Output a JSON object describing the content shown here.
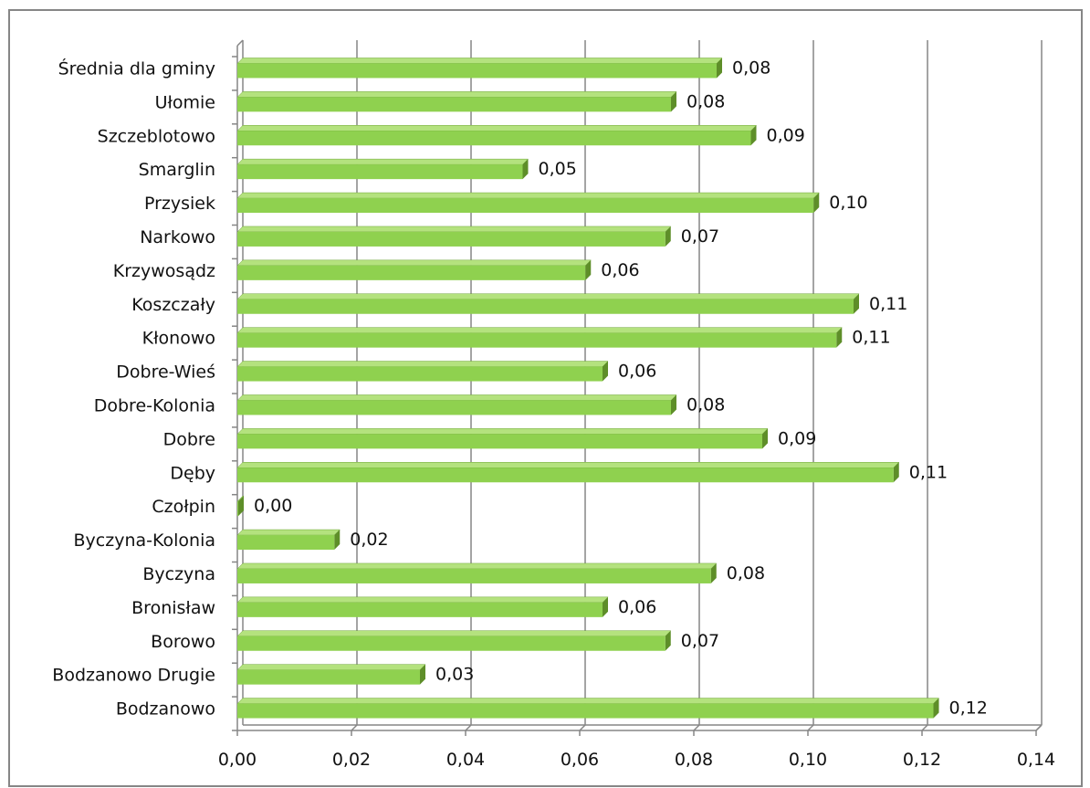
{
  "chart_data": {
    "type": "bar",
    "orientation": "horizontal",
    "style": "3d",
    "categories": [
      "Bodzanowo",
      "Bodzanowo Drugie",
      "Borowo",
      "Bronisław",
      "Byczyna",
      "Byczyna-Kolonia",
      "Czołpin",
      "Dęby",
      "Dobre",
      "Dobre-Kolonia",
      "Dobre-Wieś",
      "Kłonowo",
      "Koszczały",
      "Krzywosądz",
      "Narkowo",
      "Przysiek",
      "Smarglin",
      "Szczeblotowo",
      "Ułomie",
      "Średnia dla gminy"
    ],
    "values": [
      0.122,
      0.032,
      0.075,
      0.064,
      0.083,
      0.017,
      0.0,
      0.115,
      0.092,
      0.076,
      0.064,
      0.105,
      0.108,
      0.061,
      0.075,
      0.101,
      0.05,
      0.09,
      0.076,
      0.084
    ],
    "data_labels": [
      "0,12",
      "0,03",
      "0,07",
      "0,06",
      "0,08",
      "0,02",
      "0,00",
      "0,11",
      "0,09",
      "0,08",
      "0,06",
      "0,11",
      "0,11",
      "0,06",
      "0,07",
      "0,10",
      "0,05",
      "0,09",
      "0,08",
      "0,08"
    ],
    "x_ticks": [
      0,
      0.02,
      0.04,
      0.06,
      0.08,
      0.1,
      0.12,
      0.14
    ],
    "x_tick_labels": [
      "0,00",
      "0,02",
      "0,04",
      "0,06",
      "0,08",
      "0,10",
      "0,12",
      "0,14"
    ],
    "xlim": [
      0,
      0.14
    ],
    "grid": true,
    "legend": "none",
    "colors": {
      "bar_front": "#8fd14f",
      "bar_top": "#b4e27e",
      "bar_side": "#5e8e29",
      "gridline": "#868686",
      "axis": "#868686",
      "border": "#868686"
    }
  }
}
